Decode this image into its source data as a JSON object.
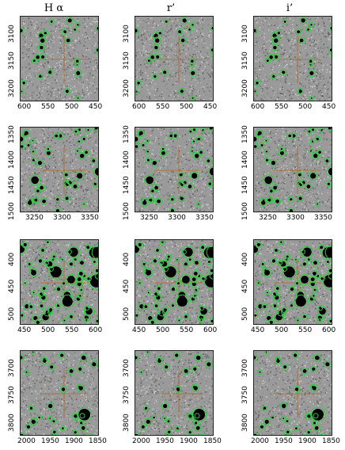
{
  "columns": [
    {
      "label": "H α"
    },
    {
      "label": "r’"
    },
    {
      "label": "i’"
    }
  ],
  "rows": [
    {
      "x_ticks": [
        "600",
        "550",
        "500",
        "450"
      ],
      "y_ticks": [
        "3100",
        "3150",
        "3200"
      ],
      "density": 0.3,
      "bright": 0.15
    },
    {
      "x_ticks": [
        "3250",
        "3300",
        "3350"
      ],
      "y_ticks": [
        "1350",
        "1400",
        "1450",
        "1500"
      ],
      "density": 0.6,
      "bright": 0.5
    },
    {
      "x_ticks": [
        "450",
        "500",
        "550",
        "600"
      ],
      "y_ticks": [
        "400",
        "450",
        "500"
      ],
      "density": 1.0,
      "bright": 0.9
    },
    {
      "x_ticks": [
        "2000",
        "1950",
        "1900",
        "1850"
      ],
      "y_ticks": [
        "3700",
        "3750",
        "3800"
      ],
      "density": 0.45,
      "bright": 0.4
    }
  ],
  "colors": {
    "marker": "#2ecc40",
    "crosshair": "#b5651d",
    "background": "#9a9a9a"
  }
}
